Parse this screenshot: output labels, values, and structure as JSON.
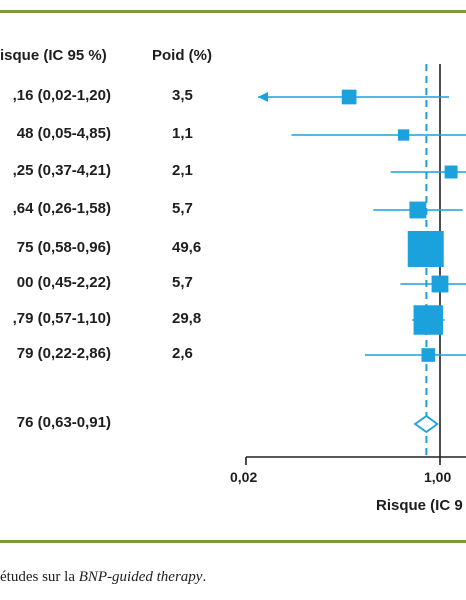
{
  "headers": {
    "risk": "isque (IC 95 %)",
    "weight": "Poid (%)"
  },
  "caption": {
    "prefix": "études sur la ",
    "emphasis": "BNP-guided therapy",
    "suffix": "."
  },
  "chart_data": {
    "type": "forest",
    "xlabel": "Risque (IC 9",
    "ticks": [
      {
        "value": 0.02,
        "label": "0,02"
      },
      {
        "value": 1.0,
        "label": "1,00"
      }
    ],
    "reference_line": 1.0,
    "pooled_line": 0.76,
    "colors": {
      "marker": "#1ba1db",
      "axis": "#222222",
      "rule": "#7a9a3a"
    },
    "studies": [
      {
        "risk_label": ",16 (0,02-1,20)",
        "weight_label": "3,5",
        "estimate": 0.16,
        "lower": 0.02,
        "upper": 1.2,
        "weight": 3.5
      },
      {
        "risk_label": "48 (0,05-4,85)",
        "weight_label": "1,1",
        "estimate": 0.48,
        "lower": 0.05,
        "upper": 4.85,
        "weight": 1.1
      },
      {
        "risk_label": ",25 (0,37-4,21)",
        "weight_label": "2,1",
        "estimate": 1.25,
        "lower": 0.37,
        "upper": 4.21,
        "weight": 2.1
      },
      {
        "risk_label": ",64 (0,26-1,58)",
        "weight_label": "5,7",
        "estimate": 0.64,
        "lower": 0.26,
        "upper": 1.58,
        "weight": 5.7
      },
      {
        "risk_label": "75 (0,58-0,96)",
        "weight_label": "49,6",
        "estimate": 0.75,
        "lower": 0.58,
        "upper": 0.96,
        "weight": 49.6
      },
      {
        "risk_label": "00 (0,45-2,22)",
        "weight_label": "5,7",
        "estimate": 1.0,
        "lower": 0.45,
        "upper": 2.22,
        "weight": 5.7
      },
      {
        "risk_label": ",79 (0,57-1,10)",
        "weight_label": "29,8",
        "estimate": 0.79,
        "lower": 0.57,
        "upper": 1.1,
        "weight": 29.8
      },
      {
        "risk_label": "79 (0,22-2,86)",
        "weight_label": "2,6",
        "estimate": 0.79,
        "lower": 0.22,
        "upper": 2.86,
        "weight": 2.6
      }
    ],
    "pooled": {
      "risk_label": "76 (0,63-0,91)",
      "estimate": 0.76,
      "lower": 0.63,
      "upper": 0.91
    }
  }
}
